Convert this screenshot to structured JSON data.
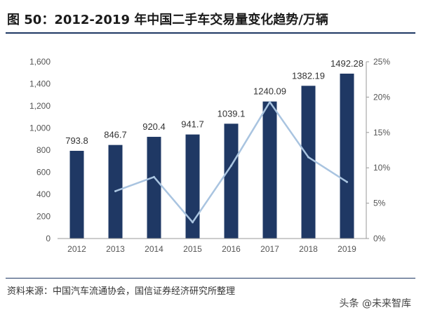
{
  "title": "图 50：2012-2019 年中国二手车交易量变化趋势/万辆",
  "source": "资料来源：中国汽车流通协会，国信证券经济研究所整理",
  "watermark": "头条 @未来智库",
  "colors": {
    "bar": "#1f3864",
    "line": "#a9c4e0",
    "rule": "#1f3864"
  },
  "chart_data": {
    "type": "bar",
    "categories": [
      "2012",
      "2013",
      "2014",
      "2015",
      "2016",
      "2017",
      "2018",
      "2019"
    ],
    "series": [
      {
        "type": "bar",
        "axis": "left",
        "values": [
          793.8,
          846.7,
          920.4,
          941.7,
          1039.1,
          1240.09,
          1382.19,
          1492.28
        ]
      },
      {
        "type": "line",
        "axis": "right",
        "values": [
          null,
          6.7,
          8.7,
          2.3,
          10.3,
          19.3,
          11.5,
          8.0
        ]
      }
    ],
    "data_labels": [
      "793.8",
      "846.7",
      "920.4",
      "941.7",
      "1039.1",
      "1240.09",
      "1382.19",
      "1492.28"
    ],
    "y_left": {
      "ylim": [
        0,
        1600
      ],
      "ticks": [
        "0",
        "200",
        "400",
        "600",
        "800",
        "1,000",
        "1,200",
        "1,400",
        "1,600"
      ]
    },
    "y_right": {
      "ylim": [
        0,
        25
      ],
      "ticks": [
        "0%",
        "5%",
        "10%",
        "15%",
        "20%",
        "25%"
      ]
    },
    "grid": false,
    "legend": "none"
  }
}
